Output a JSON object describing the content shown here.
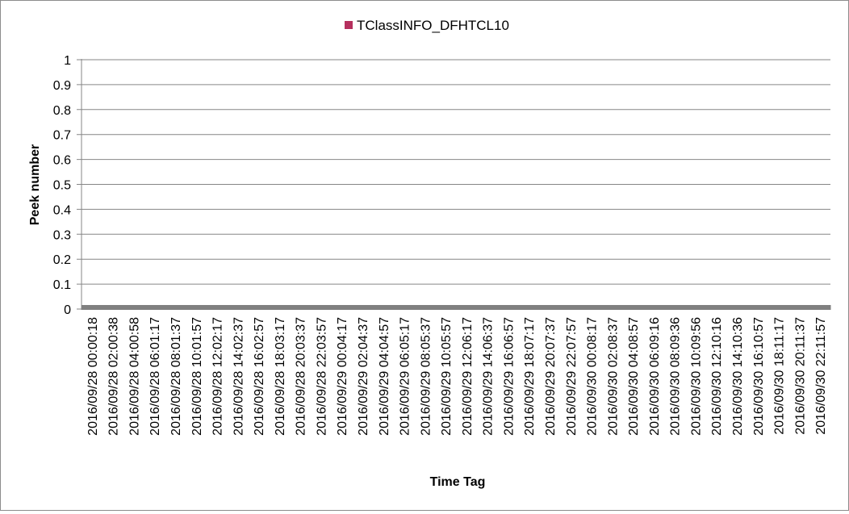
{
  "chart_data": {
    "type": "bar",
    "title": "",
    "xlabel": "Time Tag",
    "ylabel": "Peek number",
    "ylim": [
      0,
      1
    ],
    "yticks": [
      0,
      0.1,
      0.2,
      0.3,
      0.4,
      0.5,
      0.6,
      0.7,
      0.8,
      0.9,
      1
    ],
    "grid": "horizontal",
    "legend_position": "top-center",
    "categories": [
      "2016/09/28 00:00:18",
      "2016/09/28 02:00:38",
      "2016/09/28 04:00:58",
      "2016/09/28 06:01:17",
      "2016/09/28 08:01:37",
      "2016/09/28 10:01:57",
      "2016/09/28 12:02:17",
      "2016/09/28 14:02:37",
      "2016/09/28 16:02:57",
      "2016/09/28 18:03:17",
      "2016/09/28 20:03:37",
      "2016/09/28 22:03:57",
      "2016/09/29 00:04:17",
      "2016/09/29 02:04:37",
      "2016/09/29 04:04:57",
      "2016/09/29 06:05:17",
      "2016/09/29 08:05:37",
      "2016/09/29 10:05:57",
      "2016/09/29 12:06:17",
      "2016/09/29 14:06:37",
      "2016/09/29 16:06:57",
      "2016/09/29 18:07:17",
      "2016/09/29 20:07:37",
      "2016/09/29 22:07:57",
      "2016/09/30 00:08:17",
      "2016/09/30 02:08:37",
      "2016/09/30 04:08:57",
      "2016/09/30 06:09:16",
      "2016/09/30 08:09:36",
      "2016/09/30 10:09:56",
      "2016/09/30 12:10:16",
      "2016/09/30 14:10:36",
      "2016/09/30 16:10:57",
      "2016/09/30 18:11:17",
      "2016/09/30 20:11:37",
      "2016/09/30 22:11:57"
    ],
    "series": [
      {
        "name": "TClassINFO_DFHTCL10",
        "color": "#b5305e",
        "values": [
          0,
          0,
          0,
          0,
          0,
          0,
          0,
          0,
          0,
          0,
          0,
          0,
          0,
          0,
          0,
          0,
          0,
          0,
          0,
          0,
          0,
          0,
          0,
          0,
          0,
          0,
          0,
          0,
          0,
          0,
          0,
          0,
          0,
          0,
          0,
          0
        ]
      }
    ]
  }
}
